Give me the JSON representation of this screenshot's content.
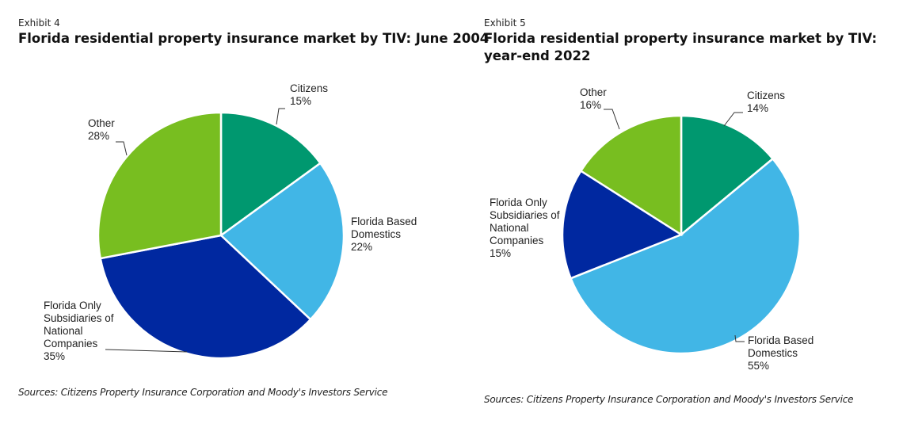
{
  "chart_data": [
    {
      "type": "pie",
      "exhibit": "Exhibit 4",
      "title": "Florida residential property insurance market by TIV: June 2004",
      "categories": [
        "Citizens",
        "Florida Based Domestics",
        "Florida Only Subsidiaries of National Companies",
        "Other"
      ],
      "values": [
        15,
        22,
        35,
        28
      ],
      "data_labels": [
        "15%",
        "22%",
        "35%",
        "28%"
      ],
      "colors": [
        "#00986f",
        "#41b6e6",
        "#0028a0",
        "#78be20"
      ],
      "source": "Sources: Citizens Property Insurance Corporation and Moody's Investors Service"
    },
    {
      "type": "pie",
      "exhibit": "Exhibit 5",
      "title": "Florida residential property insurance market by TIV: year-end 2022",
      "categories": [
        "Citizens",
        "Florida Based Domestics",
        "Florida Only Subsidiaries of National Companies",
        "Other"
      ],
      "values": [
        14,
        55,
        15,
        16
      ],
      "data_labels": [
        "14%",
        "55%",
        "15%",
        "16%"
      ],
      "colors": [
        "#00986f",
        "#41b6e6",
        "#0028a0",
        "#78be20"
      ],
      "source": "Sources: Citizens Property Insurance Corporation and Moody's Investors Service"
    }
  ]
}
